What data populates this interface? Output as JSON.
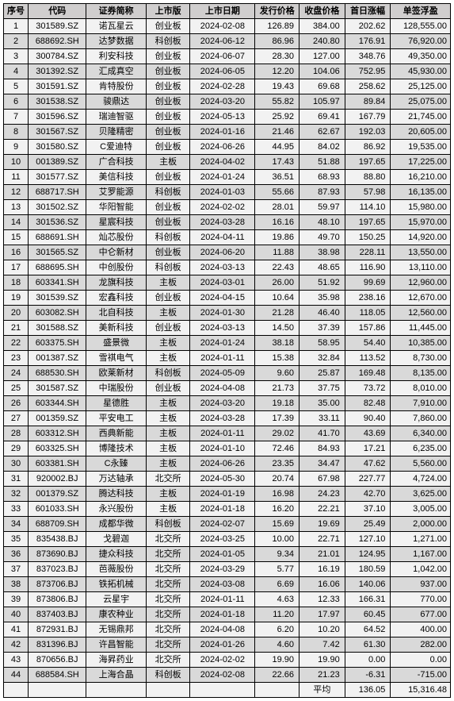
{
  "headers": [
    "序号",
    "代码",
    "证券简称",
    "上市版",
    "上市日期",
    "发行价格",
    "收盘价格",
    "首日涨幅",
    "单签浮盈"
  ],
  "avg_label": "平均",
  "rows": [
    [
      1,
      "301589.SZ",
      "诺瓦星云",
      "创业板",
      "2024-02-08",
      "126.89",
      "384.00",
      "202.62",
      "128,555.00"
    ],
    [
      2,
      "688692.SH",
      "达梦数据",
      "科创板",
      "2024-06-12",
      "86.96",
      "240.80",
      "176.91",
      "76,920.00"
    ],
    [
      3,
      "300784.SZ",
      "利安科技",
      "创业板",
      "2024-06-07",
      "28.30",
      "127.00",
      "348.76",
      "49,350.00"
    ],
    [
      4,
      "301392.SZ",
      "汇成真空",
      "创业板",
      "2024-06-05",
      "12.20",
      "104.06",
      "752.95",
      "45,930.00"
    ],
    [
      5,
      "301591.SZ",
      "肯特股份",
      "创业板",
      "2024-02-28",
      "19.43",
      "69.68",
      "258.62",
      "25,125.00"
    ],
    [
      6,
      "301538.SZ",
      "骏鼎达",
      "创业板",
      "2024-03-20",
      "55.82",
      "105.97",
      "89.84",
      "25,075.00"
    ],
    [
      7,
      "301596.SZ",
      "瑞迪智驱",
      "创业板",
      "2024-05-13",
      "25.92",
      "69.41",
      "167.79",
      "21,745.00"
    ],
    [
      8,
      "301567.SZ",
      "贝隆精密",
      "创业板",
      "2024-01-16",
      "21.46",
      "62.67",
      "192.03",
      "20,605.00"
    ],
    [
      9,
      "301580.SZ",
      "C爱迪特",
      "创业板",
      "2024-06-26",
      "44.95",
      "84.02",
      "86.92",
      "19,535.00"
    ],
    [
      10,
      "001389.SZ",
      "广合科技",
      "主板",
      "2024-04-02",
      "17.43",
      "51.88",
      "197.65",
      "17,225.00"
    ],
    [
      11,
      "301577.SZ",
      "美信科技",
      "创业板",
      "2024-01-24",
      "36.51",
      "68.93",
      "88.80",
      "16,210.00"
    ],
    [
      12,
      "688717.SH",
      "艾罗能源",
      "科创板",
      "2024-01-03",
      "55.66",
      "87.93",
      "57.98",
      "16,135.00"
    ],
    [
      13,
      "301502.SZ",
      "华阳智能",
      "创业板",
      "2024-02-02",
      "28.01",
      "59.97",
      "114.10",
      "15,980.00"
    ],
    [
      14,
      "301536.SZ",
      "星宸科技",
      "创业板",
      "2024-03-28",
      "16.16",
      "48.10",
      "197.65",
      "15,970.00"
    ],
    [
      15,
      "688691.SH",
      "灿芯股份",
      "科创板",
      "2024-04-11",
      "19.86",
      "49.70",
      "150.25",
      "14,920.00"
    ],
    [
      16,
      "301565.SZ",
      "中仑新材",
      "创业板",
      "2024-06-20",
      "11.88",
      "38.98",
      "228.11",
      "13,550.00"
    ],
    [
      17,
      "688695.SH",
      "中创股份",
      "科创板",
      "2024-03-13",
      "22.43",
      "48.65",
      "116.90",
      "13,110.00"
    ],
    [
      18,
      "603341.SH",
      "龙旗科技",
      "主板",
      "2024-03-01",
      "26.00",
      "51.92",
      "99.69",
      "12,960.00"
    ],
    [
      19,
      "301539.SZ",
      "宏鑫科技",
      "创业板",
      "2024-04-15",
      "10.64",
      "35.98",
      "238.16",
      "12,670.00"
    ],
    [
      20,
      "603082.SH",
      "北自科技",
      "主板",
      "2024-01-30",
      "21.28",
      "46.40",
      "118.05",
      "12,560.00"
    ],
    [
      21,
      "301588.SZ",
      "美新科技",
      "创业板",
      "2024-03-13",
      "14.50",
      "37.39",
      "157.86",
      "11,445.00"
    ],
    [
      22,
      "603375.SH",
      "盛景微",
      "主板",
      "2024-01-24",
      "38.18",
      "58.95",
      "54.40",
      "10,385.00"
    ],
    [
      23,
      "001387.SZ",
      "雪祺电气",
      "主板",
      "2024-01-11",
      "15.38",
      "32.84",
      "113.52",
      "8,730.00"
    ],
    [
      24,
      "688530.SH",
      "欧莱新材",
      "科创板",
      "2024-05-09",
      "9.60",
      "25.87",
      "169.48",
      "8,135.00"
    ],
    [
      25,
      "301587.SZ",
      "中瑞股份",
      "创业板",
      "2024-04-08",
      "21.73",
      "37.75",
      "73.72",
      "8,010.00"
    ],
    [
      26,
      "603344.SH",
      "星德胜",
      "主板",
      "2024-03-20",
      "19.18",
      "35.00",
      "82.48",
      "7,910.00"
    ],
    [
      27,
      "001359.SZ",
      "平安电工",
      "主板",
      "2024-03-28",
      "17.39",
      "33.11",
      "90.40",
      "7,860.00"
    ],
    [
      28,
      "603312.SH",
      "西典新能",
      "主板",
      "2024-01-11",
      "29.02",
      "41.70",
      "43.69",
      "6,340.00"
    ],
    [
      29,
      "603325.SH",
      "博隆技术",
      "主板",
      "2024-01-10",
      "72.46",
      "84.93",
      "17.21",
      "6,235.00"
    ],
    [
      30,
      "603381.SH",
      "C永臻",
      "主板",
      "2024-06-26",
      "23.35",
      "34.47",
      "47.62",
      "5,560.00"
    ],
    [
      31,
      "920002.BJ",
      "万达轴承",
      "北交所",
      "2024-05-30",
      "20.74",
      "67.98",
      "227.77",
      "4,724.00"
    ],
    [
      32,
      "001379.SZ",
      "腾达科技",
      "主板",
      "2024-01-19",
      "16.98",
      "24.23",
      "42.70",
      "3,625.00"
    ],
    [
      33,
      "601033.SH",
      "永兴股份",
      "主板",
      "2024-01-18",
      "16.20",
      "22.21",
      "37.10",
      "3,005.00"
    ],
    [
      34,
      "688709.SH",
      "成都华微",
      "科创板",
      "2024-02-07",
      "15.69",
      "19.69",
      "25.49",
      "2,000.00"
    ],
    [
      35,
      "835438.BJ",
      "戈碧迦",
      "北交所",
      "2024-03-25",
      "10.00",
      "22.71",
      "127.10",
      "1,271.00"
    ],
    [
      36,
      "873690.BJ",
      "捷众科技",
      "北交所",
      "2024-01-05",
      "9.34",
      "21.01",
      "124.95",
      "1,167.00"
    ],
    [
      37,
      "837023.BJ",
      "芭薇股份",
      "北交所",
      "2024-03-29",
      "5.77",
      "16.19",
      "180.59",
      "1,042.00"
    ],
    [
      38,
      "873706.BJ",
      "铁拓机械",
      "北交所",
      "2024-03-08",
      "6.69",
      "16.06",
      "140.06",
      "937.00"
    ],
    [
      39,
      "873806.BJ",
      "云星宇",
      "北交所",
      "2024-01-11",
      "4.63",
      "12.33",
      "166.31",
      "770.00"
    ],
    [
      40,
      "837403.BJ",
      "康农种业",
      "北交所",
      "2024-01-18",
      "11.20",
      "17.97",
      "60.45",
      "677.00"
    ],
    [
      41,
      "872931.BJ",
      "无锡鼎邦",
      "北交所",
      "2024-04-08",
      "6.20",
      "10.20",
      "64.52",
      "400.00"
    ],
    [
      42,
      "831396.BJ",
      "许昌智能",
      "北交所",
      "2024-01-26",
      "4.60",
      "7.42",
      "61.30",
      "282.00"
    ],
    [
      43,
      "870656.BJ",
      "海昇药业",
      "北交所",
      "2024-02-02",
      "19.90",
      "19.90",
      "0.00",
      "0.00"
    ],
    [
      44,
      "688584.SH",
      "上海合晶",
      "科创板",
      "2024-02-08",
      "22.66",
      "21.23",
      "-6.31",
      "-715.00"
    ]
  ],
  "avg": [
    "136.05",
    "15,316.48"
  ]
}
